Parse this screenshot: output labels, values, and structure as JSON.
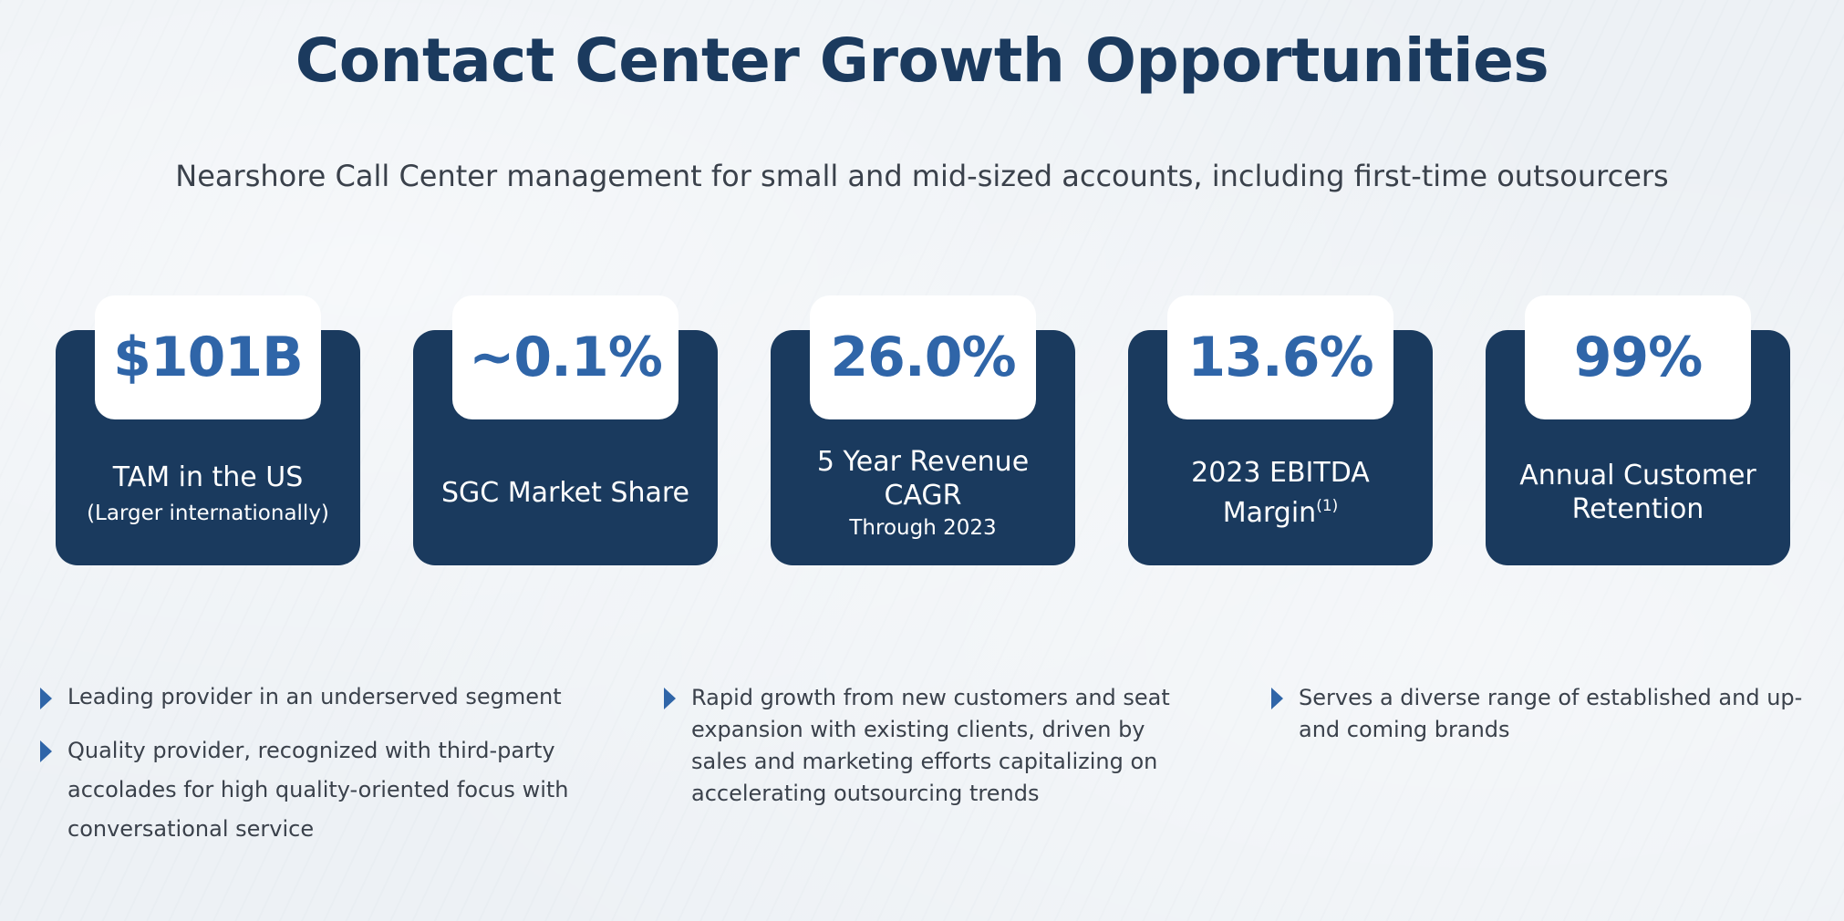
{
  "title": "Contact Center Growth Opportunities",
  "subtitle": "Nearshore Call Center management for small and mid-sized accounts, including first-time outsourcers",
  "cards": [
    {
      "value": "$101B",
      "label": "TAM in the US",
      "sub": "(Larger internationally)"
    },
    {
      "value": "~0.1%",
      "label": "SGC Market Share"
    },
    {
      "value": "26.0%",
      "label_line1": "5 Year Revenue",
      "label_line2": "CAGR",
      "sub": "Through 2023"
    },
    {
      "value": "13.6%",
      "label_line1": "2023 EBITDA",
      "label_line2": "Margin",
      "footnote": "(1)"
    },
    {
      "value": "99%",
      "label_line1": "Annual Customer",
      "label_line2": "Retention"
    }
  ],
  "bullets": {
    "col1": [
      "Leading provider in an underserved segment",
      "Quality provider, recognized with third-party accolades for high quality-oriented focus with conversational service"
    ],
    "col2": [
      "Rapid growth from new customers and seat expansion with existing clients, driven by sales and marketing efforts capitalizing on accelerating outsourcing trends"
    ],
    "col3": [
      "Serves a diverse range of established and up-and coming brands"
    ]
  },
  "colors": {
    "navy": "#1a3a5e",
    "accent_blue": "#2f65a8",
    "background": "#edf1f5"
  },
  "icons": {
    "bullet": "triangle-right-icon"
  }
}
